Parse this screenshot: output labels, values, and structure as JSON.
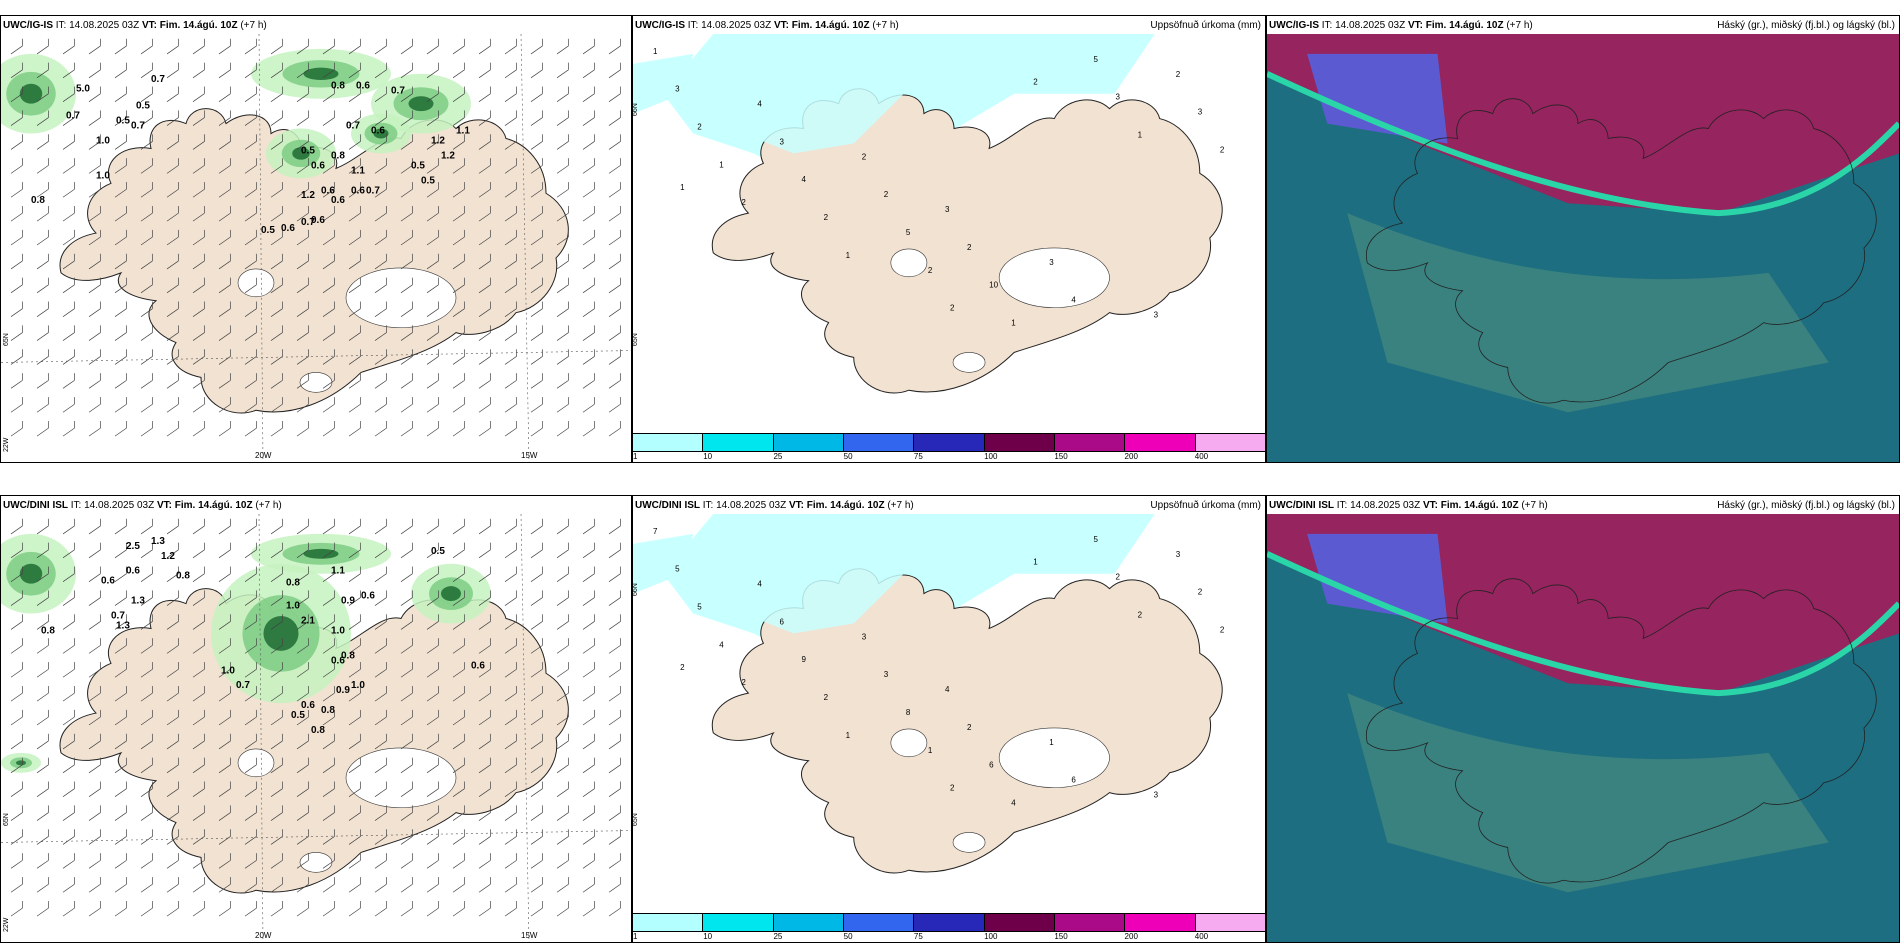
{
  "rows": [
    {
      "model": "UWC/IG-IS",
      "it_label": "IT:",
      "it": "14.08.2025 03Z",
      "vt_label": "VT:",
      "vt": "Fim. 14.ágú. 10Z",
      "lead": "(+7 h)",
      "wind_values": [
        "5.0",
        "0.7",
        "0.7",
        "1.0",
        "0.5",
        "0.7",
        "0.5",
        "0.8",
        "1.0",
        "0.8",
        "0.6",
        "0.7",
        "0.6",
        "0.7",
        "0.5",
        "0.6",
        "0.8",
        "1.1",
        "1.2",
        "0.6",
        "0.5",
        "0.6",
        "0.7",
        "0.6",
        "0.5",
        "0.5",
        "1.2",
        "1.1",
        "1.2",
        "0.6",
        "0.6",
        "0.7"
      ],
      "precip_values": [
        "1",
        "4",
        "2",
        "3",
        "3",
        "3",
        "3",
        "3",
        "2",
        "2",
        "4",
        "2",
        "2",
        "4",
        "5",
        "10",
        "5",
        "3",
        "1",
        "2",
        "2",
        "1",
        "3",
        "2",
        "2",
        "1",
        "2",
        "2",
        "1",
        "1"
      ]
    },
    {
      "model": "UWC/DINI ISL",
      "it_label": "IT:",
      "it": "14.08.2025 03Z",
      "vt_label": "VT:",
      "vt": "Fim. 14.ágú. 10Z",
      "lead": "(+7 h)",
      "wind_values": [
        "2.5",
        "1.3",
        "1.2",
        "0.6",
        "0.6",
        "0.8",
        "1.3",
        "1.3",
        "0.7",
        "0.8",
        "1.0",
        "0.7",
        "0.8",
        "1.1",
        "2.1",
        "1.0",
        "1.0",
        "0.9",
        "0.6",
        "0.5",
        "0.6",
        "0.8",
        "1.0",
        "0.6",
        "0.8",
        "0.5",
        "0.6",
        "0.8",
        "0.9"
      ],
      "precip_values": [
        "7",
        "4",
        "3",
        "4",
        "1",
        "3",
        "5",
        "6",
        "3",
        "2",
        "6",
        "3",
        "5",
        "9",
        "8",
        "6",
        "5",
        "2",
        "4",
        "2",
        "1",
        "4",
        "2",
        "2",
        "2",
        "1",
        "2",
        "1",
        "2",
        "2"
      ]
    }
  ],
  "precip_title": "Uppsöfnuð úrkoma (mm)",
  "cloud_title": "Háský (gr.), miðský (fj.bl.) og lágský (bl.)",
  "colorbar": {
    "ticks": [
      "1",
      "10",
      "25",
      "50",
      "75",
      "100",
      "150",
      "200",
      "400"
    ],
    "colors": [
      "#b3ffff",
      "#00e6ee",
      "#00b8e6",
      "#3366ee",
      "#2727b8",
      "#6e004a",
      "#aa0a88",
      "#ee00b8",
      "#f6aaf0"
    ]
  },
  "axes": {
    "lon_ticks": [
      "20W",
      "15W"
    ],
    "lat_ticks": [
      "66N",
      "65N"
    ],
    "left_tick": "22W"
  },
  "colors": {
    "land": "#f2e2d2",
    "precip_green_light": "#c6f2c0",
    "precip_green_mid": "#7ccd85",
    "precip_green_dark": "#1f6b32",
    "precip_cyan": "#c8ffff",
    "cloud_base": "#1d6e80",
    "cloud_mid": "#4e8f7e",
    "cloud_high": "#96245e",
    "cloud_low_band": "#2ad5a8",
    "cloud_blue": "#5c5ad0"
  }
}
